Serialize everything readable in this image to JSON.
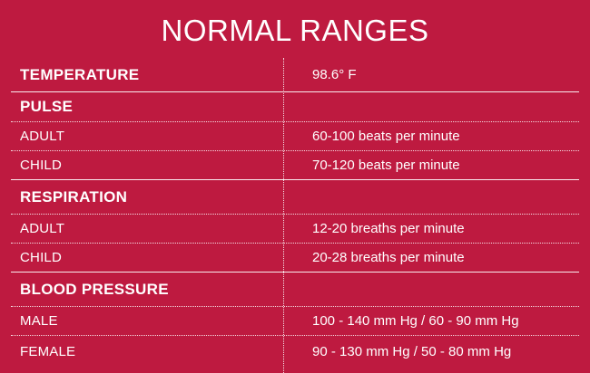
{
  "title": "NORMAL RANGES",
  "temperature": {
    "label": "TEMPERATURE",
    "value": "98.6° F"
  },
  "pulse": {
    "label": "PULSE",
    "rows": [
      {
        "label": "ADULT",
        "value": "60-100 beats per minute"
      },
      {
        "label": "CHILD",
        "value": "70-120 beats per minute"
      }
    ]
  },
  "respiration": {
    "label": "RESPIRATION",
    "rows": [
      {
        "label": "ADULT",
        "value": "12-20 breaths per minute"
      },
      {
        "label": "CHILD",
        "value": "20-28 breaths per minute"
      }
    ]
  },
  "blood_pressure": {
    "label": "BLOOD PRESSURE",
    "rows": [
      {
        "label": "MALE",
        "value": "100 - 140 mm Hg / 60 - 90 mm Hg"
      },
      {
        "label": "FEMALE",
        "value": "90 - 130 mm Hg / 50 - 80 mm Hg"
      }
    ]
  },
  "colors": {
    "background": "#be1a40",
    "text": "#ffffff"
  }
}
